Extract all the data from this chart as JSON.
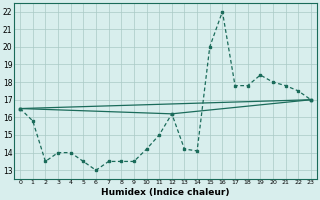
{
  "x": [
    0,
    1,
    2,
    3,
    4,
    5,
    6,
    7,
    8,
    9,
    10,
    11,
    12,
    13,
    14,
    15,
    16,
    17,
    18,
    19,
    20,
    21,
    22,
    23
  ],
  "line_main": [
    16.5,
    15.8,
    13.5,
    14.0,
    14.0,
    13.5,
    13.0,
    13.5,
    13.5,
    13.5,
    14.2,
    15.0,
    16.2,
    14.2,
    14.1,
    20.0,
    22.0,
    17.8,
    17.8,
    18.4,
    18.0,
    17.8,
    17.5,
    17.0
  ],
  "trend1_x": [
    0,
    23
  ],
  "trend1_y": [
    16.5,
    17.0
  ],
  "trend2_x": [
    0,
    12,
    23
  ],
  "trend2_y": [
    16.5,
    16.2,
    17.0
  ],
  "bg_color": "#d8eeed",
  "line_color": "#1a6b5a",
  "grid_color": "#aac9c6",
  "ylabel_values": [
    13,
    14,
    15,
    16,
    17,
    18,
    19,
    20,
    21,
    22
  ],
  "xlabel": "Humidex (Indice chaleur)",
  "ylim": [
    12.5,
    22.5
  ],
  "xlim": [
    -0.5,
    23.5
  ],
  "tick_fontsize": 5.5,
  "xlabel_fontsize": 6.5
}
